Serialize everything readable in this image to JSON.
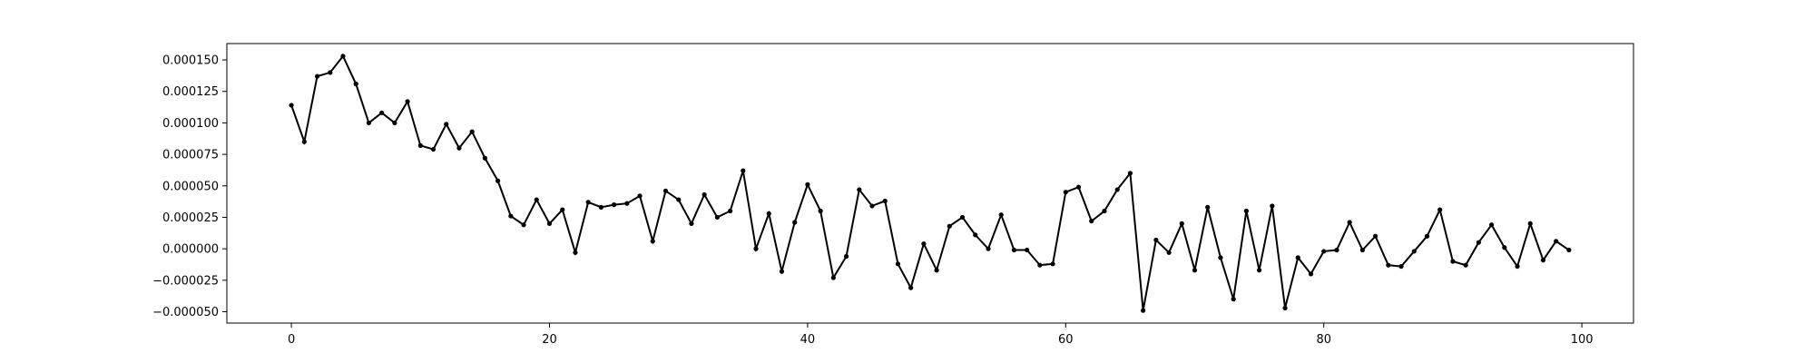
{
  "chart_data": {
    "type": "line",
    "title": "",
    "xlabel": "",
    "ylabel": "",
    "grid": false,
    "xlim": [
      -5,
      104
    ],
    "ylim": [
      -5.9e-05,
      0.000163
    ],
    "x_ticks": [
      0,
      20,
      40,
      60,
      80,
      100
    ],
    "x_tick_labels": [
      "0",
      "20",
      "40",
      "60",
      "80",
      "100"
    ],
    "y_ticks": [
      -5e-05,
      -2.5e-05,
      0,
      2.5e-05,
      5e-05,
      7.5e-05,
      0.0001,
      0.000125,
      0.00015
    ],
    "y_tick_labels": [
      "−0.000050",
      "−0.000025",
      "0.000000",
      "0.000025",
      "0.000050",
      "0.000075",
      "0.000100",
      "0.000125",
      "0.000150"
    ],
    "series": [
      {
        "color": "#000000",
        "marker": "dot",
        "x": [
          0,
          1,
          2,
          3,
          4,
          5,
          6,
          7,
          8,
          9,
          10,
          11,
          12,
          13,
          14,
          15,
          16,
          17,
          18,
          19,
          20,
          21,
          22,
          23,
          24,
          25,
          26,
          27,
          28,
          29,
          30,
          31,
          32,
          33,
          34,
          35,
          36,
          37,
          38,
          39,
          40,
          41,
          42,
          43,
          44,
          45,
          46,
          47,
          48,
          49,
          50,
          51,
          52,
          53,
          54,
          55,
          56,
          57,
          58,
          59,
          60,
          61,
          62,
          63,
          64,
          65,
          66,
          67,
          68,
          69,
          70,
          71,
          72,
          73,
          74,
          75,
          76,
          77,
          78,
          79,
          80,
          81,
          82,
          83,
          84,
          85,
          86,
          87,
          88,
          89,
          90,
          91,
          92,
          93,
          94,
          95,
          96,
          97,
          98,
          99
        ],
        "y": [
          0.000114,
          8.5e-05,
          0.000137,
          0.00014,
          0.000153,
          0.000131,
          0.0001,
          0.000108,
          0.0001,
          0.000117,
          8.2e-05,
          7.9e-05,
          9.9e-05,
          8e-05,
          9.3e-05,
          7.2e-05,
          5.4e-05,
          2.6e-05,
          1.9e-05,
          3.9e-05,
          2e-05,
          3.1e-05,
          -3e-06,
          3.7e-05,
          3.3e-05,
          3.5e-05,
          3.6e-05,
          4.2e-05,
          6e-06,
          4.6e-05,
          3.9e-05,
          2e-05,
          4.3e-05,
          2.5e-05,
          3e-05,
          6.2e-05,
          0.0,
          2.8e-05,
          -1.8e-05,
          2.1e-05,
          5.1e-05,
          3e-05,
          -2.3e-05,
          -6e-06,
          4.7e-05,
          3.4e-05,
          3.8e-05,
          -1.2e-05,
          -3.1e-05,
          4e-06,
          -1.7e-05,
          1.8e-05,
          2.5e-05,
          1.1e-05,
          0.0,
          2.7e-05,
          -1e-06,
          -1e-06,
          -1.3e-05,
          -1.2e-05,
          4.5e-05,
          4.9e-05,
          2.2e-05,
          3e-05,
          4.7e-05,
          6e-05,
          -4.9e-05,
          7e-06,
          -3e-06,
          2e-05,
          -1.7e-05,
          3.3e-05,
          -7e-06,
          -4e-05,
          3e-05,
          -1.7e-05,
          3.4e-05,
          -4.7e-05,
          -7e-06,
          -2e-05,
          -2e-06,
          -1e-06,
          2.1e-05,
          -1e-06,
          1e-05,
          -1.3e-05,
          -1.4e-05,
          -2e-06,
          1e-05,
          3.1e-05,
          -1e-05,
          -1.3e-05,
          5e-06,
          1.9e-05,
          1e-06,
          -1.4e-05,
          2e-05,
          -9e-06,
          6e-06,
          -1e-06
        ]
      }
    ]
  }
}
